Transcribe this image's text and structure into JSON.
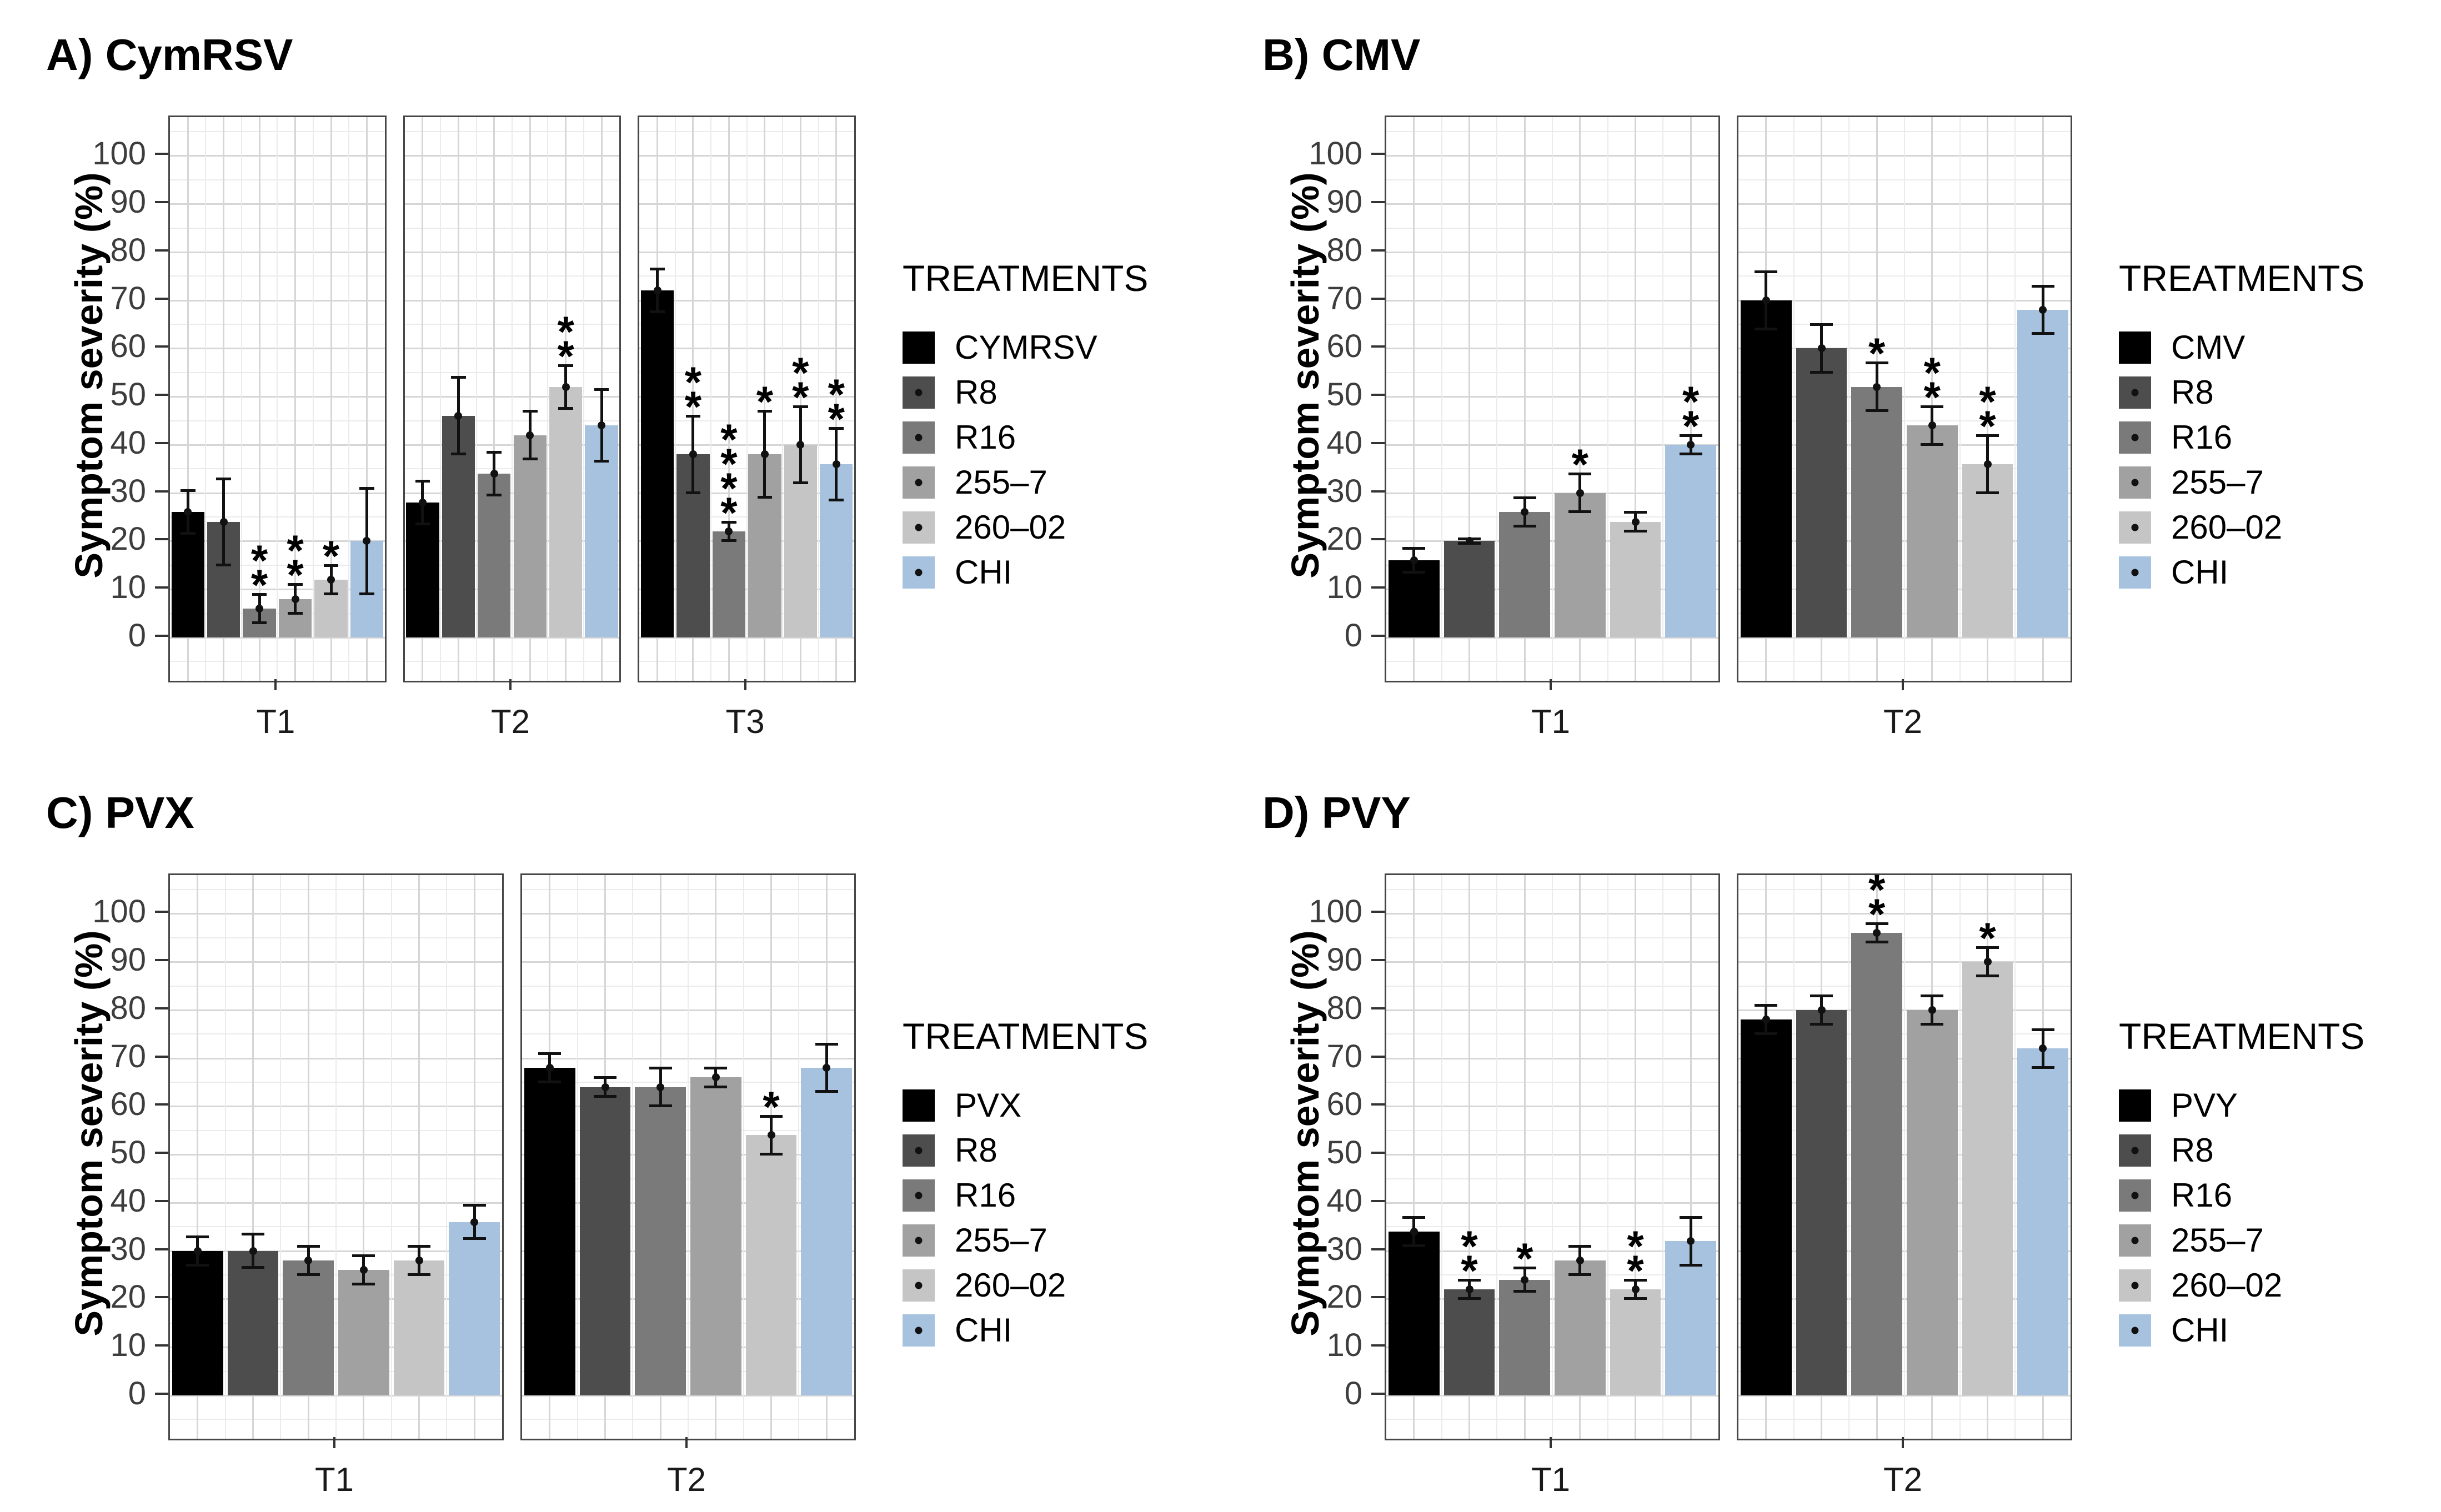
{
  "figure_background": "#ffffff",
  "chart_data": [
    {
      "id": "A",
      "type": "bar",
      "title": "A) CymRSV",
      "ylabel": "Symptom severity (%)",
      "ylim": [
        0,
        100
      ],
      "yticks": [
        0,
        10,
        20,
        30,
        40,
        50,
        60,
        70,
        80,
        90,
        100
      ],
      "grid": true,
      "legend_position": "right",
      "legend_title": "TREATMENTS",
      "treatments": [
        "CYMRSV",
        "R8",
        "R16",
        "255–7",
        "260–02",
        "CHI"
      ],
      "colors": [
        "#000000",
        "#4d4d4d",
        "#7a7a7a",
        "#a1a1a1",
        "#c5c5c5",
        "#a7c2de"
      ],
      "facets": [
        {
          "label": "T1",
          "values": [
            26,
            24,
            6,
            8,
            12,
            20
          ],
          "errors": [
            4.5,
            9,
            3,
            3,
            3,
            11
          ],
          "significance": [
            "",
            "",
            "**",
            "**",
            "*",
            ""
          ]
        },
        {
          "label": "T2",
          "values": [
            28,
            46,
            34,
            42,
            52,
            44
          ],
          "errors": [
            4.5,
            8,
            4.5,
            5,
            4.5,
            7.5
          ],
          "significance": [
            "",
            "",
            "",
            "",
            "**",
            ""
          ]
        },
        {
          "label": "T3",
          "values": [
            72,
            38,
            22,
            38,
            40,
            36
          ],
          "errors": [
            4.5,
            8,
            2,
            9,
            8,
            7.5
          ],
          "significance": [
            "",
            "**",
            "****",
            "*",
            "**",
            "**"
          ]
        }
      ]
    },
    {
      "id": "B",
      "type": "bar",
      "title": "B) CMV",
      "ylabel": "Symptom severity (%)",
      "ylim": [
        0,
        100
      ],
      "yticks": [
        0,
        10,
        20,
        30,
        40,
        50,
        60,
        70,
        80,
        90,
        100
      ],
      "grid": true,
      "legend_position": "right",
      "legend_title": "TREATMENTS",
      "treatments": [
        "CMV",
        "R8",
        "R16",
        "255–7",
        "260–02",
        "CHI"
      ],
      "colors": [
        "#000000",
        "#4d4d4d",
        "#7a7a7a",
        "#a1a1a1",
        "#c5c5c5",
        "#a7c2de"
      ],
      "facets": [
        {
          "label": "T1",
          "values": [
            16,
            20,
            26,
            30,
            24,
            40
          ],
          "errors": [
            2.5,
            0.5,
            3,
            4,
            2,
            2
          ],
          "significance": [
            "",
            "",
            "",
            "*",
            "",
            "**"
          ]
        },
        {
          "label": "T2",
          "values": [
            70,
            60,
            52,
            44,
            36,
            68
          ],
          "errors": [
            6,
            5,
            5,
            4,
            6,
            5
          ],
          "significance": [
            "",
            "",
            "*",
            "**",
            "**",
            ""
          ]
        }
      ]
    },
    {
      "id": "C",
      "type": "bar",
      "title": "C) PVX",
      "ylabel": "Symptom severity (%)",
      "ylim": [
        0,
        100
      ],
      "yticks": [
        0,
        10,
        20,
        30,
        40,
        50,
        60,
        70,
        80,
        90,
        100
      ],
      "grid": true,
      "legend_position": "right",
      "legend_title": "TREATMENTS",
      "treatments": [
        "PVX",
        "R8",
        "R16",
        "255–7",
        "260–02",
        "CHI"
      ],
      "colors": [
        "#000000",
        "#4d4d4d",
        "#7a7a7a",
        "#a1a1a1",
        "#c5c5c5",
        "#a7c2de"
      ],
      "facets": [
        {
          "label": "T1",
          "values": [
            30,
            30,
            28,
            26,
            28,
            36
          ],
          "errors": [
            3,
            3.5,
            3,
            3,
            3,
            3.5
          ],
          "significance": [
            "",
            "",
            "",
            "",
            "",
            ""
          ]
        },
        {
          "label": "T2",
          "values": [
            68,
            64,
            64,
            66,
            54,
            68
          ],
          "errors": [
            3,
            2,
            4,
            2,
            4,
            5
          ],
          "significance": [
            "",
            "",
            "",
            "",
            "*",
            ""
          ]
        }
      ]
    },
    {
      "id": "D",
      "type": "bar",
      "title": "D) PVY",
      "ylabel": "Symptom severity (%)",
      "ylim": [
        0,
        100
      ],
      "yticks": [
        0,
        10,
        20,
        30,
        40,
        50,
        60,
        70,
        80,
        90,
        100
      ],
      "grid": true,
      "legend_position": "right",
      "legend_title": "TREATMENTS",
      "treatments": [
        "PVY",
        "R8",
        "R16",
        "255–7",
        "260–02",
        "CHI"
      ],
      "colors": [
        "#000000",
        "#4d4d4d",
        "#7a7a7a",
        "#a1a1a1",
        "#c5c5c5",
        "#a7c2de"
      ],
      "facets": [
        {
          "label": "T1",
          "values": [
            34,
            22,
            24,
            28,
            22,
            32
          ],
          "errors": [
            3,
            2,
            2.5,
            3,
            2,
            5
          ],
          "significance": [
            "",
            "**",
            "*",
            "",
            "**",
            ""
          ]
        },
        {
          "label": "T2",
          "values": [
            78,
            80,
            96,
            80,
            90,
            72
          ],
          "errors": [
            3,
            3,
            2,
            3,
            3,
            4
          ],
          "significance": [
            "",
            "",
            "**",
            "",
            "*",
            ""
          ]
        }
      ]
    }
  ]
}
